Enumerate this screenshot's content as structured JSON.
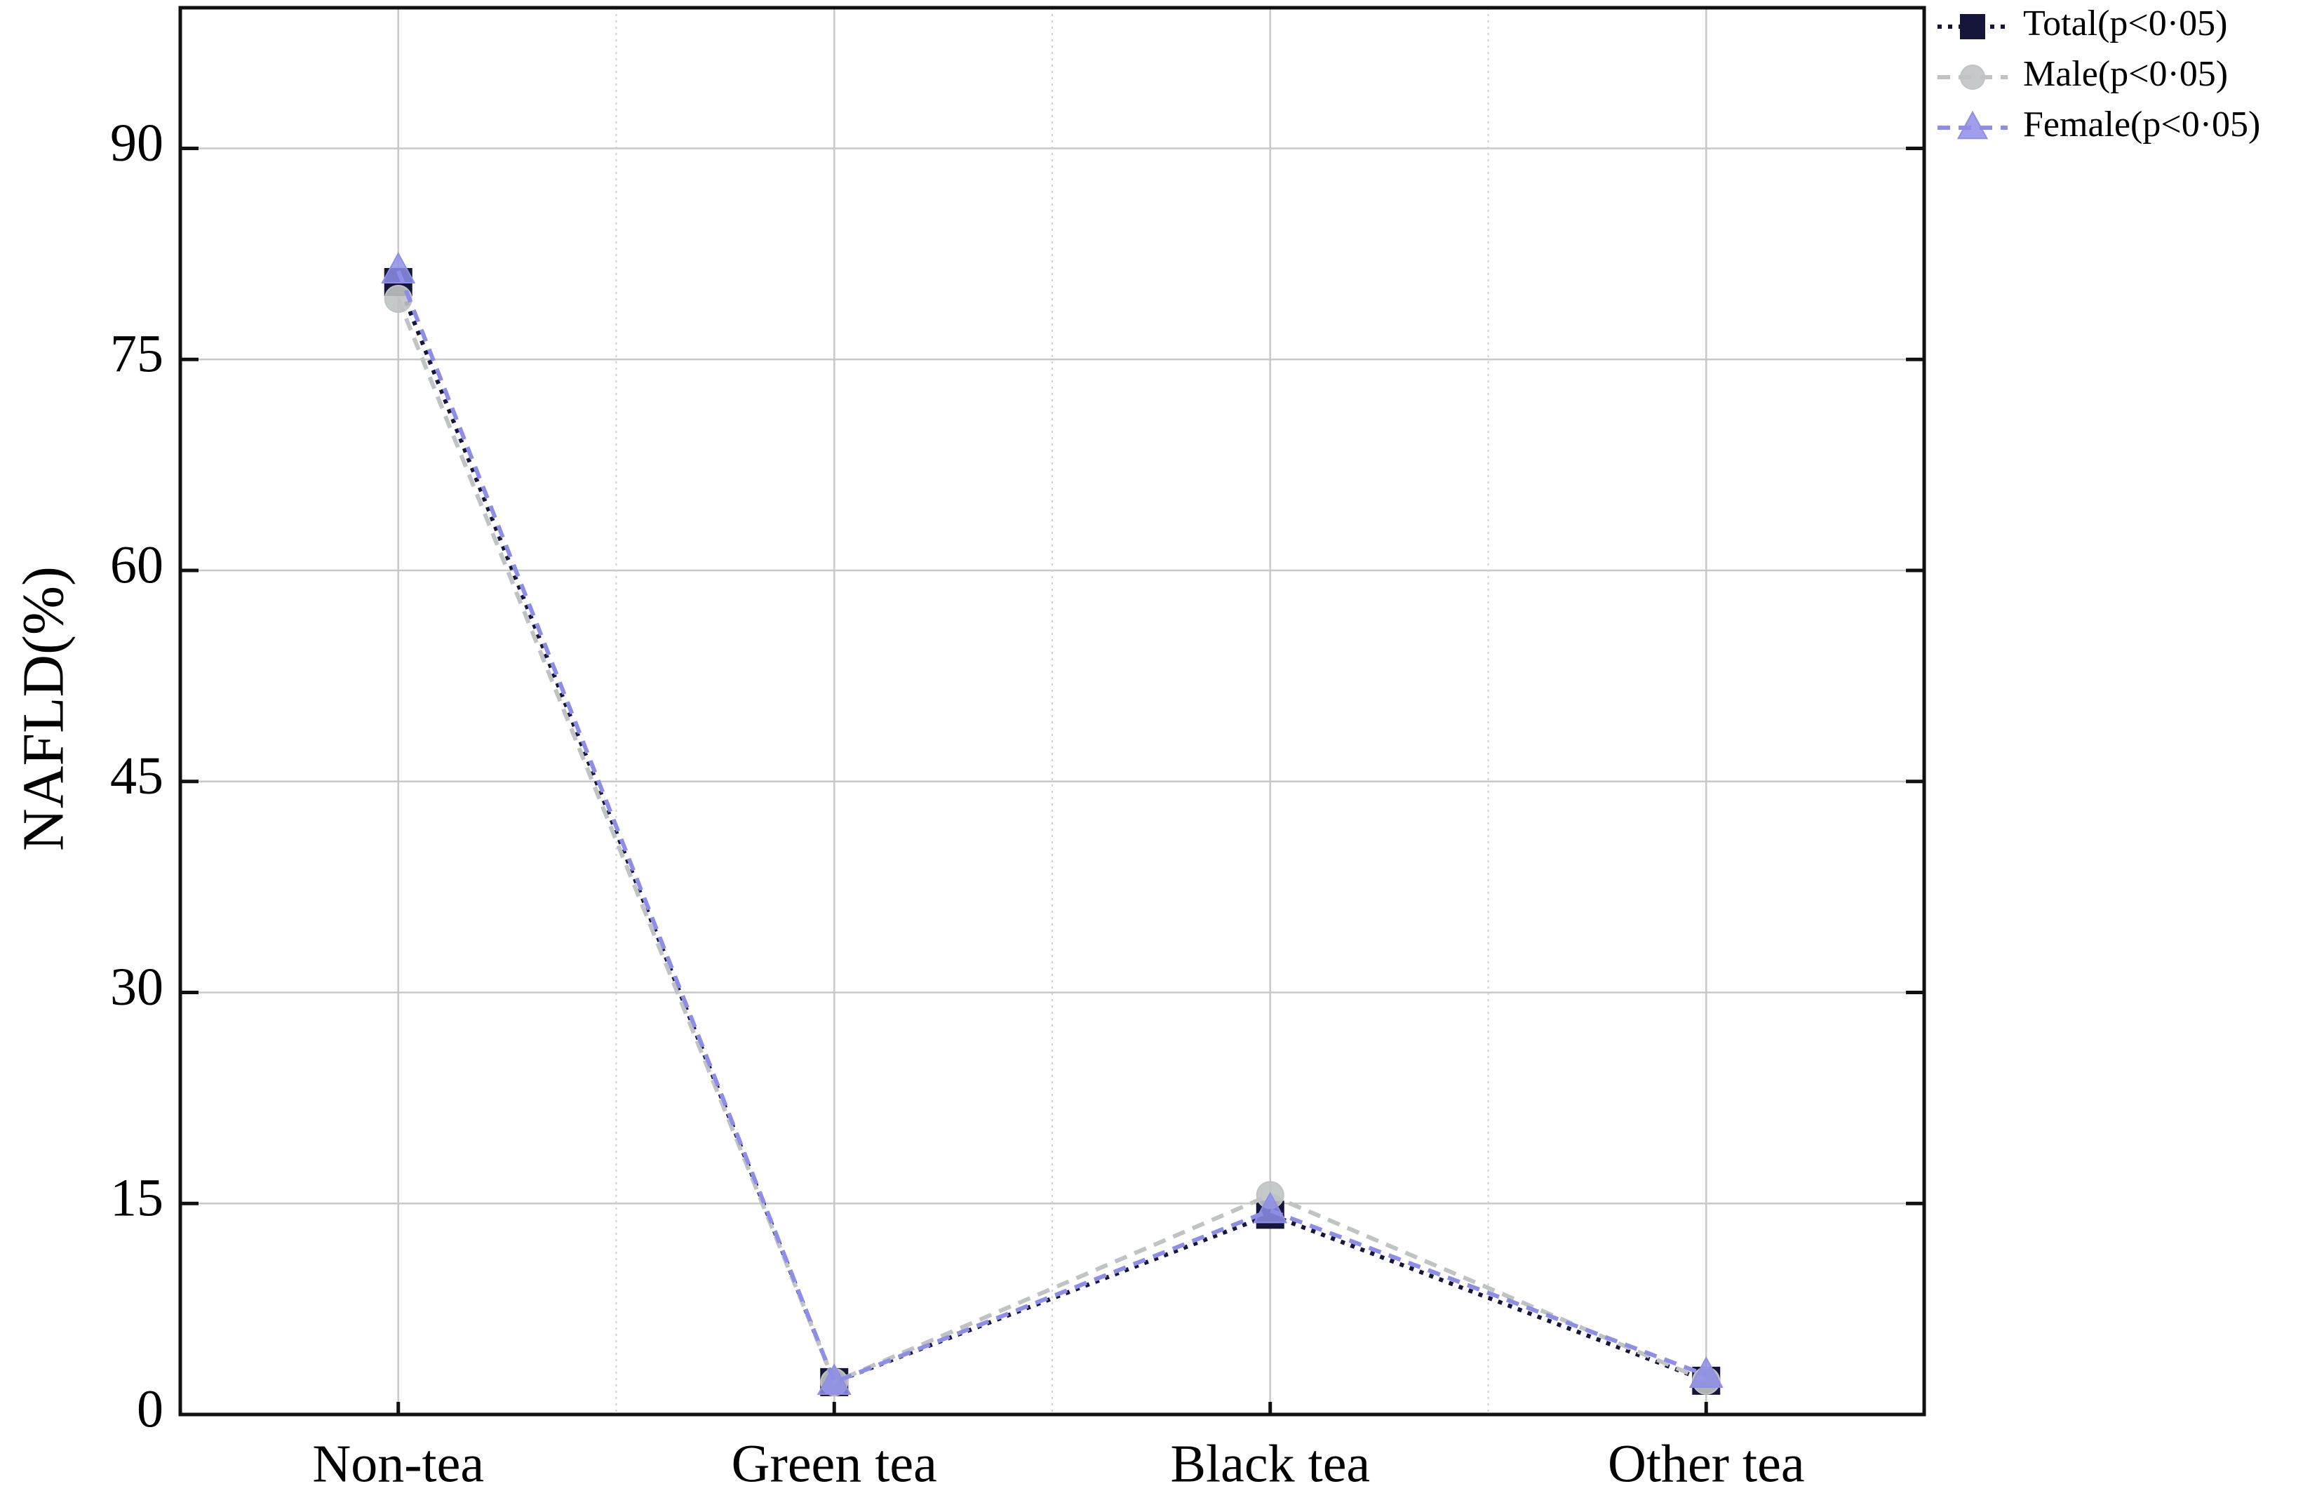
{
  "chart_data": {
    "type": "line",
    "ylabel": "NAFLD(%)",
    "categories": [
      "Non-tea",
      "Green tea",
      "Black tea",
      "Other tea"
    ],
    "series": [
      {
        "name": "Total(p<0·05)",
        "color": "#15163a",
        "marker": "square",
        "dash": "dotted",
        "values": [
          80.5,
          2.3,
          14.2,
          2.4
        ]
      },
      {
        "name": "Male(p<0·05)",
        "color": "#bfc3c3",
        "marker": "circle",
        "dash": "dashed",
        "values": [
          79.3,
          2.3,
          15.6,
          2.4
        ]
      },
      {
        "name": "Female(p<0·05)",
        "color": "#8e8ee8",
        "marker": "triangle",
        "dash": "dashed",
        "values": [
          81.3,
          2.3,
          14.5,
          2.8
        ]
      }
    ],
    "ylim": [
      0,
      100
    ],
    "yticks": [
      0,
      15,
      30,
      45,
      60,
      75,
      90
    ],
    "grid": true,
    "legend": "top-right"
  }
}
